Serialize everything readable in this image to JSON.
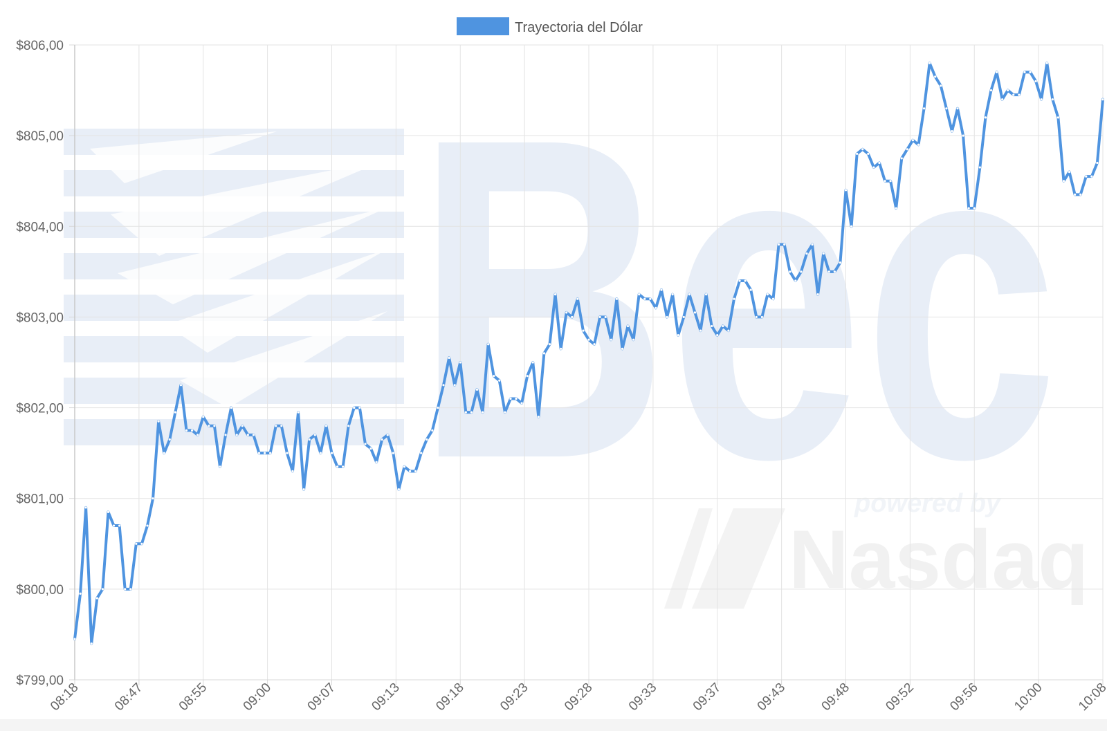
{
  "chart_data": {
    "type": "line",
    "legend": {
      "label": "Trayectoria del Dólar",
      "position": "top-center",
      "color": "#4f94e0"
    },
    "series": [
      {
        "name": "Trayectoria del Dólar",
        "color": "#4f94e0",
        "values": [
          799.45,
          799.95,
          800.9,
          799.4,
          799.9,
          800.0,
          800.85,
          800.7,
          800.7,
          800.0,
          800.0,
          800.5,
          800.5,
          800.7,
          801.0,
          801.85,
          801.5,
          801.65,
          801.95,
          802.25,
          801.75,
          801.75,
          801.7,
          801.9,
          801.8,
          801.8,
          801.35,
          801.7,
          802.0,
          801.7,
          801.8,
          801.7,
          801.7,
          801.5,
          801.5,
          801.5,
          801.8,
          801.8,
          801.5,
          801.3,
          801.95,
          801.1,
          801.65,
          801.7,
          801.5,
          801.8,
          801.5,
          801.35,
          801.35,
          801.8,
          802.0,
          802.0,
          801.6,
          801.55,
          801.4,
          801.65,
          801.7,
          801.5,
          801.1,
          801.35,
          801.3,
          801.3,
          801.5,
          801.65,
          801.75,
          802.0,
          802.25,
          802.55,
          802.25,
          802.5,
          801.95,
          801.95,
          802.2,
          801.95,
          802.7,
          802.35,
          802.3,
          801.95,
          802.1,
          802.1,
          802.05,
          802.35,
          802.5,
          801.9,
          802.6,
          802.7,
          803.25,
          802.65,
          803.05,
          803.0,
          803.2,
          802.85,
          802.75,
          802.7,
          803.0,
          803.0,
          802.75,
          803.2,
          802.65,
          802.9,
          802.75,
          803.25,
          803.2,
          803.2,
          803.1,
          803.3,
          803.0,
          803.25,
          802.8,
          803.0,
          803.25,
          803.05,
          802.85,
          803.25,
          802.9,
          802.8,
          802.9,
          802.85,
          803.2,
          803.4,
          803.4,
          803.3,
          803.0,
          803.0,
          803.25,
          803.2,
          803.8,
          803.8,
          803.5,
          803.4,
          803.5,
          803.7,
          803.8,
          803.25,
          803.7,
          803.5,
          803.5,
          803.6,
          804.4,
          804.0,
          804.8,
          804.85,
          804.8,
          804.65,
          804.7,
          804.5,
          804.5,
          804.2,
          804.75,
          804.85,
          804.95,
          804.9,
          805.3,
          805.8,
          805.65,
          805.55,
          805.3,
          805.05,
          805.3,
          805.0,
          804.2,
          804.2,
          804.65,
          805.2,
          805.5,
          805.7,
          805.4,
          805.5,
          805.45,
          805.45,
          805.7,
          805.7,
          805.6,
          805.4,
          805.8,
          805.4,
          805.2,
          804.5,
          804.6,
          804.35,
          804.35,
          804.55,
          804.55,
          804.7,
          805.4
        ]
      }
    ],
    "x_tick_labels": [
      "08:18",
      "08:47",
      "08:55",
      "09:00",
      "09:07",
      "09:13",
      "09:18",
      "09:23",
      "09:28",
      "09:33",
      "09:37",
      "09:43",
      "09:48",
      "09:52",
      "09:56",
      "10:00",
      "10:08"
    ],
    "y_tick_labels": [
      "$806,00",
      "$805,00",
      "$804,00",
      "$803,00",
      "$802,00",
      "$801,00",
      "$800,00",
      "$799,00"
    ],
    "y_ticks": [
      806,
      805,
      804,
      803,
      802,
      801,
      800,
      799
    ],
    "ylim": [
      799,
      806
    ],
    "grid": true,
    "watermark": {
      "brand": "Bec",
      "tagline": "powered by",
      "partner": "Nasdaq"
    }
  }
}
